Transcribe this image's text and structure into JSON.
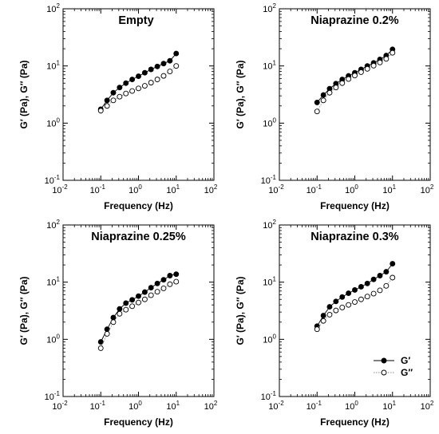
{
  "chart_data": [
    {
      "type": "scatter",
      "title": "Empty",
      "xlabel": "Frequency (Hz)",
      "ylabel": "G′ (Pa), G″ (Pa)",
      "xscale": "log",
      "yscale": "log",
      "xlim": [
        0.01,
        100
      ],
      "ylim": [
        0.1,
        100
      ],
      "x": [
        0.1,
        0.147,
        0.215,
        0.316,
        0.464,
        0.681,
        1.0,
        1.47,
        2.15,
        3.16,
        4.64,
        6.81,
        10.0
      ],
      "series": [
        {
          "name": "G′",
          "marker": "filled-circle",
          "line": "solid",
          "values": [
            1.75,
            2.5,
            3.4,
            4.2,
            5.0,
            5.8,
            6.6,
            7.6,
            8.7,
            9.8,
            11.0,
            12.3,
            16.5
          ]
        },
        {
          "name": "G″",
          "marker": "open-circle",
          "line": "dotted",
          "values": [
            1.65,
            2.0,
            2.5,
            2.9,
            3.3,
            3.65,
            4.05,
            4.5,
            5.1,
            5.8,
            6.7,
            8.0,
            10.0
          ]
        }
      ]
    },
    {
      "type": "scatter",
      "title": "Niaprazine 0.2%",
      "xlabel": "Frequency (Hz)",
      "ylabel": "G′ (Pa), G″ (Pa)",
      "xscale": "log",
      "yscale": "log",
      "xlim": [
        0.01,
        100
      ],
      "ylim": [
        0.1,
        100
      ],
      "x": [
        0.1,
        0.147,
        0.215,
        0.316,
        0.464,
        0.681,
        1.0,
        1.47,
        2.15,
        3.16,
        4.64,
        6.81,
        10.0
      ],
      "series": [
        {
          "name": "G′",
          "marker": "filled-circle",
          "line": "solid",
          "values": [
            2.3,
            3.1,
            4.0,
            4.9,
            5.8,
            6.7,
            7.6,
            8.7,
            10.0,
            11.3,
            13.0,
            15.2,
            19.5
          ]
        },
        {
          "name": "G″",
          "marker": "open-circle",
          "line": "dotted",
          "values": [
            1.6,
            2.5,
            3.4,
            4.2,
            5.0,
            5.9,
            6.8,
            7.8,
            8.9,
            10.1,
            11.5,
            13.3,
            17.0
          ]
        }
      ]
    },
    {
      "type": "scatter",
      "title": "Niaprazine 0.25%",
      "xlabel": "Frequency (Hz)",
      "ylabel": "G′ (Pa), G″ (Pa)",
      "xscale": "log",
      "yscale": "log",
      "xlim": [
        0.01,
        100
      ],
      "ylim": [
        0.1,
        100
      ],
      "x": [
        0.1,
        0.147,
        0.215,
        0.316,
        0.464,
        0.681,
        1.0,
        1.47,
        2.15,
        3.16,
        4.64,
        6.81,
        10.0
      ],
      "series": [
        {
          "name": "G′",
          "marker": "filled-circle",
          "line": "solid",
          "values": [
            0.9,
            1.5,
            2.4,
            3.4,
            4.3,
            4.9,
            5.7,
            6.7,
            8.0,
            9.5,
            11.0,
            13.0,
            13.8
          ]
        },
        {
          "name": "G″",
          "marker": "open-circle",
          "line": "dotted",
          "values": [
            0.7,
            1.25,
            2.0,
            2.8,
            3.3,
            3.8,
            4.4,
            5.0,
            5.9,
            6.8,
            7.8,
            9.2,
            10.2
          ]
        }
      ]
    },
    {
      "type": "scatter",
      "title": "Niaprazine 0.3%",
      "xlabel": "Frequency (Hz)",
      "ylabel": "G′ (Pa), G″ (Pa)",
      "xscale": "log",
      "yscale": "log",
      "xlim": [
        0.01,
        100
      ],
      "ylim": [
        0.1,
        100
      ],
      "x": [
        0.1,
        0.147,
        0.215,
        0.316,
        0.464,
        0.681,
        1.0,
        1.47,
        2.15,
        3.16,
        4.64,
        6.81,
        10.0
      ],
      "series": [
        {
          "name": "G′",
          "marker": "filled-circle",
          "line": "solid",
          "values": [
            1.7,
            2.6,
            3.7,
            4.6,
            5.5,
            6.4,
            7.3,
            8.3,
            9.5,
            11.2,
            13.0,
            15.2,
            21.0
          ]
        },
        {
          "name": "G″",
          "marker": "open-circle",
          "line": "dotted",
          "values": [
            1.5,
            2.1,
            2.7,
            3.2,
            3.6,
            4.0,
            4.5,
            5.0,
            5.6,
            6.3,
            7.2,
            8.6,
            12.0
          ]
        }
      ],
      "legend": {
        "placement": "bottom-right",
        "entries": [
          "G′",
          "G″"
        ]
      }
    }
  ],
  "tick_labels": {
    "x": [
      {
        "base": "10",
        "exp": "-2"
      },
      {
        "base": "10",
        "exp": "-1"
      },
      {
        "base": "10",
        "exp": "0"
      },
      {
        "base": "10",
        "exp": "1"
      },
      {
        "base": "10",
        "exp": "2"
      }
    ],
    "y": [
      {
        "base": "10",
        "exp": "-1"
      },
      {
        "base": "10",
        "exp": "0"
      },
      {
        "base": "10",
        "exp": "1"
      },
      {
        "base": "10",
        "exp": "2"
      }
    ]
  },
  "colors": {
    "marker": "#000000",
    "line_g_prime": "#000000",
    "line_g_double_prime": "#888888",
    "frame": "#000000"
  }
}
